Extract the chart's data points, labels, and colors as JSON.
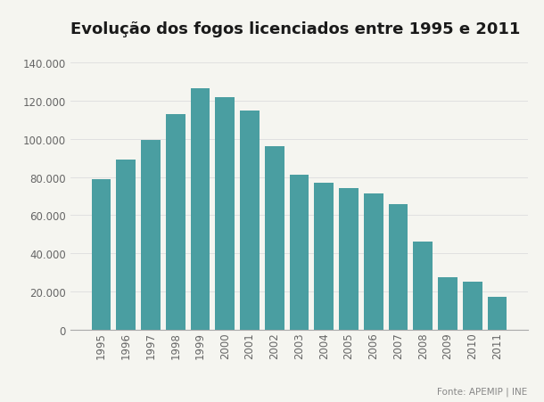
{
  "title": "Evolução dos fogos licenciados entre 1995 e 2011",
  "years": [
    1995,
    1996,
    1997,
    1998,
    1999,
    2000,
    2001,
    2002,
    2003,
    2004,
    2005,
    2006,
    2007,
    2008,
    2009,
    2010,
    2011
  ],
  "values": [
    79000,
    89000,
    99500,
    113000,
    126500,
    122000,
    115000,
    96000,
    81000,
    77000,
    74000,
    71500,
    66000,
    46000,
    27500,
    25000,
    17000
  ],
  "bar_color": "#4a9ea1",
  "background_color": "#f5f5f0",
  "yticks": [
    0,
    20000,
    40000,
    60000,
    80000,
    100000,
    120000,
    140000
  ],
  "ylim": [
    0,
    148000
  ],
  "source_text": "Fonte: APEMIP | INE",
  "title_fontsize": 13,
  "tick_fontsize": 8.5,
  "source_fontsize": 7.5,
  "grid_color": "#dddddd",
  "bar_width": 0.78
}
